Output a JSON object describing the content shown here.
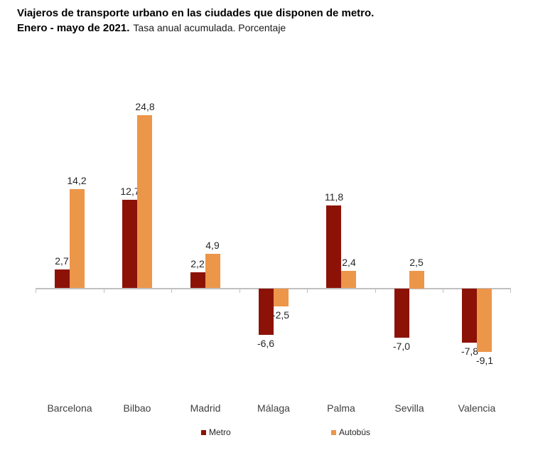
{
  "title": {
    "line1": "Viajeros de transporte urbano en las ciudades que disponen de metro.",
    "line2_bold": "Enero - mayo de 2021.",
    "line2_rest": "Tasa anual acumulada. Porcentaje"
  },
  "chart_data": {
    "type": "bar",
    "title": "Viajeros de transporte urbano en las ciudades que disponen de metro. Enero - mayo de 2021. Tasa anual acumulada. Porcentaje",
    "categories": [
      "Barcelona",
      "Bilbao",
      "Madrid",
      "Málaga",
      "Palma",
      "Sevilla",
      "Valencia"
    ],
    "series": [
      {
        "name": "Metro",
        "color": "#8C1208",
        "values": [
          2.7,
          12.7,
          2.2,
          -6.6,
          11.8,
          -7.0,
          -7.8
        ],
        "labels": [
          "2,7",
          "12,7",
          "2,2",
          "-6,6",
          "11,8",
          "-7,0",
          "-7,8"
        ]
      },
      {
        "name": "Autobús",
        "color": "#EC964A",
        "values": [
          14.2,
          24.8,
          4.9,
          -2.5,
          2.4,
          2.5,
          -9.1
        ],
        "labels": [
          "14,2",
          "24,8",
          "4,9",
          "-2,5",
          "2,4",
          "2,5",
          "-9,1"
        ]
      }
    ],
    "xlabel": "",
    "ylabel": "",
    "ylim": [
      -10,
      26
    ],
    "grid": false,
    "y_axis_ticks_visible": false,
    "legend_position": "bottom",
    "axis_color": "#C0C0C0",
    "value_label_decimal_separator": ","
  }
}
